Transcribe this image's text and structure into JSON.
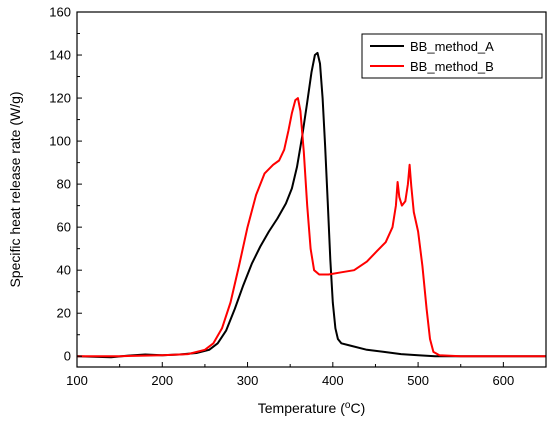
{
  "chart_data": {
    "type": "line",
    "xlabel": "Temperature (°C)",
    "xlabel_parts": {
      "pre": "Temperature (",
      "sup": "o",
      "post": "C)"
    },
    "ylabel": "Specific heat release rate (W/g)",
    "xlim": [
      100,
      650
    ],
    "ylim": [
      -5,
      160
    ],
    "x_ticks": [
      100,
      200,
      300,
      400,
      500,
      600
    ],
    "y_ticks": [
      0,
      20,
      40,
      60,
      80,
      100,
      120,
      140,
      160
    ],
    "grid": false,
    "legend_position": "top-right",
    "series": [
      {
        "name": "BB_method_A",
        "color": "#000000",
        "points": [
          [
            100,
            0
          ],
          [
            140,
            -0.5
          ],
          [
            160,
            0.3
          ],
          [
            180,
            0.8
          ],
          [
            200,
            0.5
          ],
          [
            220,
            0.8
          ],
          [
            240,
            1.5
          ],
          [
            255,
            3
          ],
          [
            265,
            6
          ],
          [
            275,
            12
          ],
          [
            285,
            22
          ],
          [
            295,
            33
          ],
          [
            305,
            43
          ],
          [
            315,
            51
          ],
          [
            325,
            58
          ],
          [
            335,
            64
          ],
          [
            345,
            71
          ],
          [
            352,
            78
          ],
          [
            358,
            88
          ],
          [
            364,
            102
          ],
          [
            370,
            118
          ],
          [
            375,
            132
          ],
          [
            379,
            140
          ],
          [
            382,
            141
          ],
          [
            385,
            136
          ],
          [
            388,
            120
          ],
          [
            391,
            98
          ],
          [
            394,
            72
          ],
          [
            397,
            45
          ],
          [
            400,
            25
          ],
          [
            403,
            13
          ],
          [
            406,
            8
          ],
          [
            410,
            6
          ],
          [
            420,
            5
          ],
          [
            440,
            3
          ],
          [
            460,
            2
          ],
          [
            480,
            1
          ],
          [
            500,
            0.5
          ],
          [
            520,
            0
          ],
          [
            550,
            0
          ],
          [
            600,
            0
          ],
          [
            650,
            0
          ]
        ]
      },
      {
        "name": "BB_method_B",
        "color": "#ff0000",
        "points": [
          [
            100,
            0
          ],
          [
            150,
            0
          ],
          [
            200,
            0.5
          ],
          [
            230,
            1
          ],
          [
            250,
            3
          ],
          [
            260,
            6
          ],
          [
            270,
            13
          ],
          [
            280,
            25
          ],
          [
            290,
            42
          ],
          [
            300,
            60
          ],
          [
            310,
            75
          ],
          [
            320,
            85
          ],
          [
            330,
            89
          ],
          [
            337,
            91
          ],
          [
            343,
            96
          ],
          [
            348,
            105
          ],
          [
            352,
            113
          ],
          [
            356,
            119
          ],
          [
            359,
            120
          ],
          [
            362,
            114
          ],
          [
            366,
            95
          ],
          [
            370,
            70
          ],
          [
            374,
            50
          ],
          [
            378,
            40
          ],
          [
            384,
            38
          ],
          [
            395,
            38
          ],
          [
            410,
            39
          ],
          [
            425,
            40
          ],
          [
            440,
            44
          ],
          [
            452,
            49
          ],
          [
            462,
            53
          ],
          [
            470,
            60
          ],
          [
            474,
            70
          ],
          [
            476,
            81
          ],
          [
            478,
            74
          ],
          [
            481,
            70
          ],
          [
            485,
            72
          ],
          [
            488,
            80
          ],
          [
            490,
            89
          ],
          [
            492,
            79
          ],
          [
            495,
            67
          ],
          [
            500,
            58
          ],
          [
            505,
            42
          ],
          [
            510,
            22
          ],
          [
            514,
            8
          ],
          [
            518,
            2
          ],
          [
            525,
            0.5
          ],
          [
            550,
            0
          ],
          [
            600,
            0
          ],
          [
            650,
            0
          ]
        ]
      }
    ]
  }
}
